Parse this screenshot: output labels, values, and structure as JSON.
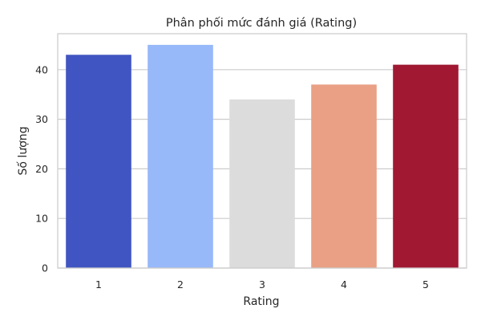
{
  "chart_data": {
    "type": "bar",
    "title": "Phân phối mức đánh giá (Rating)",
    "xlabel": "Rating",
    "ylabel": "Số lượng",
    "categories": [
      "1",
      "2",
      "3",
      "4",
      "5"
    ],
    "values": [
      43,
      45,
      34,
      37,
      41
    ],
    "colors": [
      "#4055c1",
      "#97b8f9",
      "#dcdcdc",
      "#e9a085",
      "#a01832"
    ],
    "ylim": [
      0,
      47.25
    ],
    "yticks": [
      0,
      10,
      20,
      30,
      40
    ],
    "grid": "horizontal",
    "legend": "none"
  }
}
